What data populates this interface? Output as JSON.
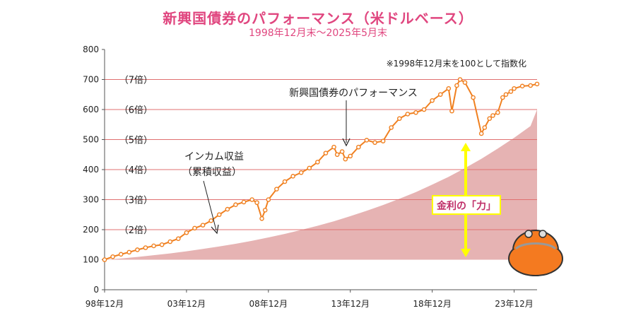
{
  "title": "新興国債券のパフォーマンス（米ドルベース）",
  "subtitle": "1998年12月末～2025年5月末",
  "colors": {
    "title": "#e0467f",
    "line": "#f08020",
    "area": "#e6b3b3",
    "gridline": "#e07070",
    "arrow": "#ffff00",
    "kinri_label": "#c0306a"
  },
  "chart_data": {
    "type": "line",
    "title": "新興国債券のパフォーマンス（米ドルベース）",
    "subtitle": "1998年12月末～2025年5月末",
    "xlabel": "",
    "ylabel": "",
    "xlim": [
      0,
      26.4
    ],
    "ylim": [
      0,
      800
    ],
    "y_ticks": [
      0,
      100,
      200,
      300,
      400,
      500,
      600,
      700,
      800
    ],
    "x_ticks": [
      {
        "x": 0,
        "label": "98年12月"
      },
      {
        "x": 5,
        "label": "03年12月"
      },
      {
        "x": 10,
        "label": "08年12月"
      },
      {
        "x": 15,
        "label": "13年12月"
      },
      {
        "x": 20,
        "label": "18年12月"
      },
      {
        "x": 25,
        "label": "23年12月"
      }
    ],
    "multiple_lines": [
      {
        "value": 200,
        "label": "（2倍）"
      },
      {
        "value": 300,
        "label": "（3倍）"
      },
      {
        "value": 400,
        "label": "（4倍）"
      },
      {
        "value": 500,
        "label": "（5倍）"
      },
      {
        "value": 600,
        "label": "（6倍）"
      },
      {
        "value": 700,
        "label": "（7倍）"
      }
    ],
    "note": "※1998年12月末を100として指数化",
    "series": [
      {
        "name": "新興国債券のパフォーマンス",
        "x": [
          0,
          0.5,
          1,
          1.5,
          2,
          2.5,
          3,
          3.5,
          4,
          4.5,
          5,
          5.5,
          6,
          6.5,
          7,
          7.5,
          8,
          8.5,
          9,
          9.3,
          9.6,
          9.8,
          10,
          10.5,
          11,
          11.5,
          12,
          12.5,
          13,
          13.5,
          14,
          14.2,
          14.5,
          14.7,
          15,
          15.5,
          16,
          16.5,
          17,
          17.5,
          18,
          18.5,
          19,
          19.5,
          20,
          20.5,
          21,
          21.2,
          21.5,
          21.7,
          22,
          22.5,
          23,
          23.2,
          23.5,
          23.7,
          24,
          24.3,
          24.5,
          24.8,
          25,
          25.5,
          26,
          26.4
        ],
        "values": [
          100,
          110,
          118,
          125,
          133,
          140,
          146,
          150,
          160,
          170,
          190,
          205,
          215,
          230,
          250,
          268,
          283,
          292,
          300,
          290,
          237,
          265,
          300,
          335,
          360,
          378,
          390,
          405,
          425,
          455,
          475,
          450,
          460,
          435,
          445,
          475,
          498,
          490,
          495,
          540,
          570,
          585,
          590,
          600,
          630,
          650,
          670,
          595,
          680,
          700,
          690,
          640,
          520,
          540,
          570,
          580,
          590,
          640,
          650,
          660,
          670,
          678,
          680,
          685
        ]
      },
      {
        "name": "インカム収益（累積収益）",
        "x": [
          0,
          1,
          2,
          3,
          4,
          5,
          6,
          7,
          8,
          9,
          10,
          11,
          12,
          13,
          14,
          15,
          16,
          17,
          18,
          19,
          20,
          21,
          22,
          23,
          24,
          25,
          26,
          26.4
        ],
        "values": [
          100,
          104,
          109,
          115,
          121,
          128,
          136,
          144,
          153,
          163,
          174,
          186,
          199,
          213,
          228,
          245,
          263,
          282,
          303,
          325,
          350,
          376,
          405,
          436,
          470,
          506,
          545,
          600
        ]
      }
    ],
    "annotations": [
      {
        "text": "新興国債券のパフォーマンス",
        "x": 15,
        "y": 620
      },
      {
        "text": "インカム収益",
        "x": 6.5,
        "y": 440
      },
      {
        "text": "（累積収益）",
        "x": 6.5,
        "y": 400
      },
      {
        "text": "金利の「力」",
        "x": 23.2,
        "y": 290
      }
    ]
  }
}
